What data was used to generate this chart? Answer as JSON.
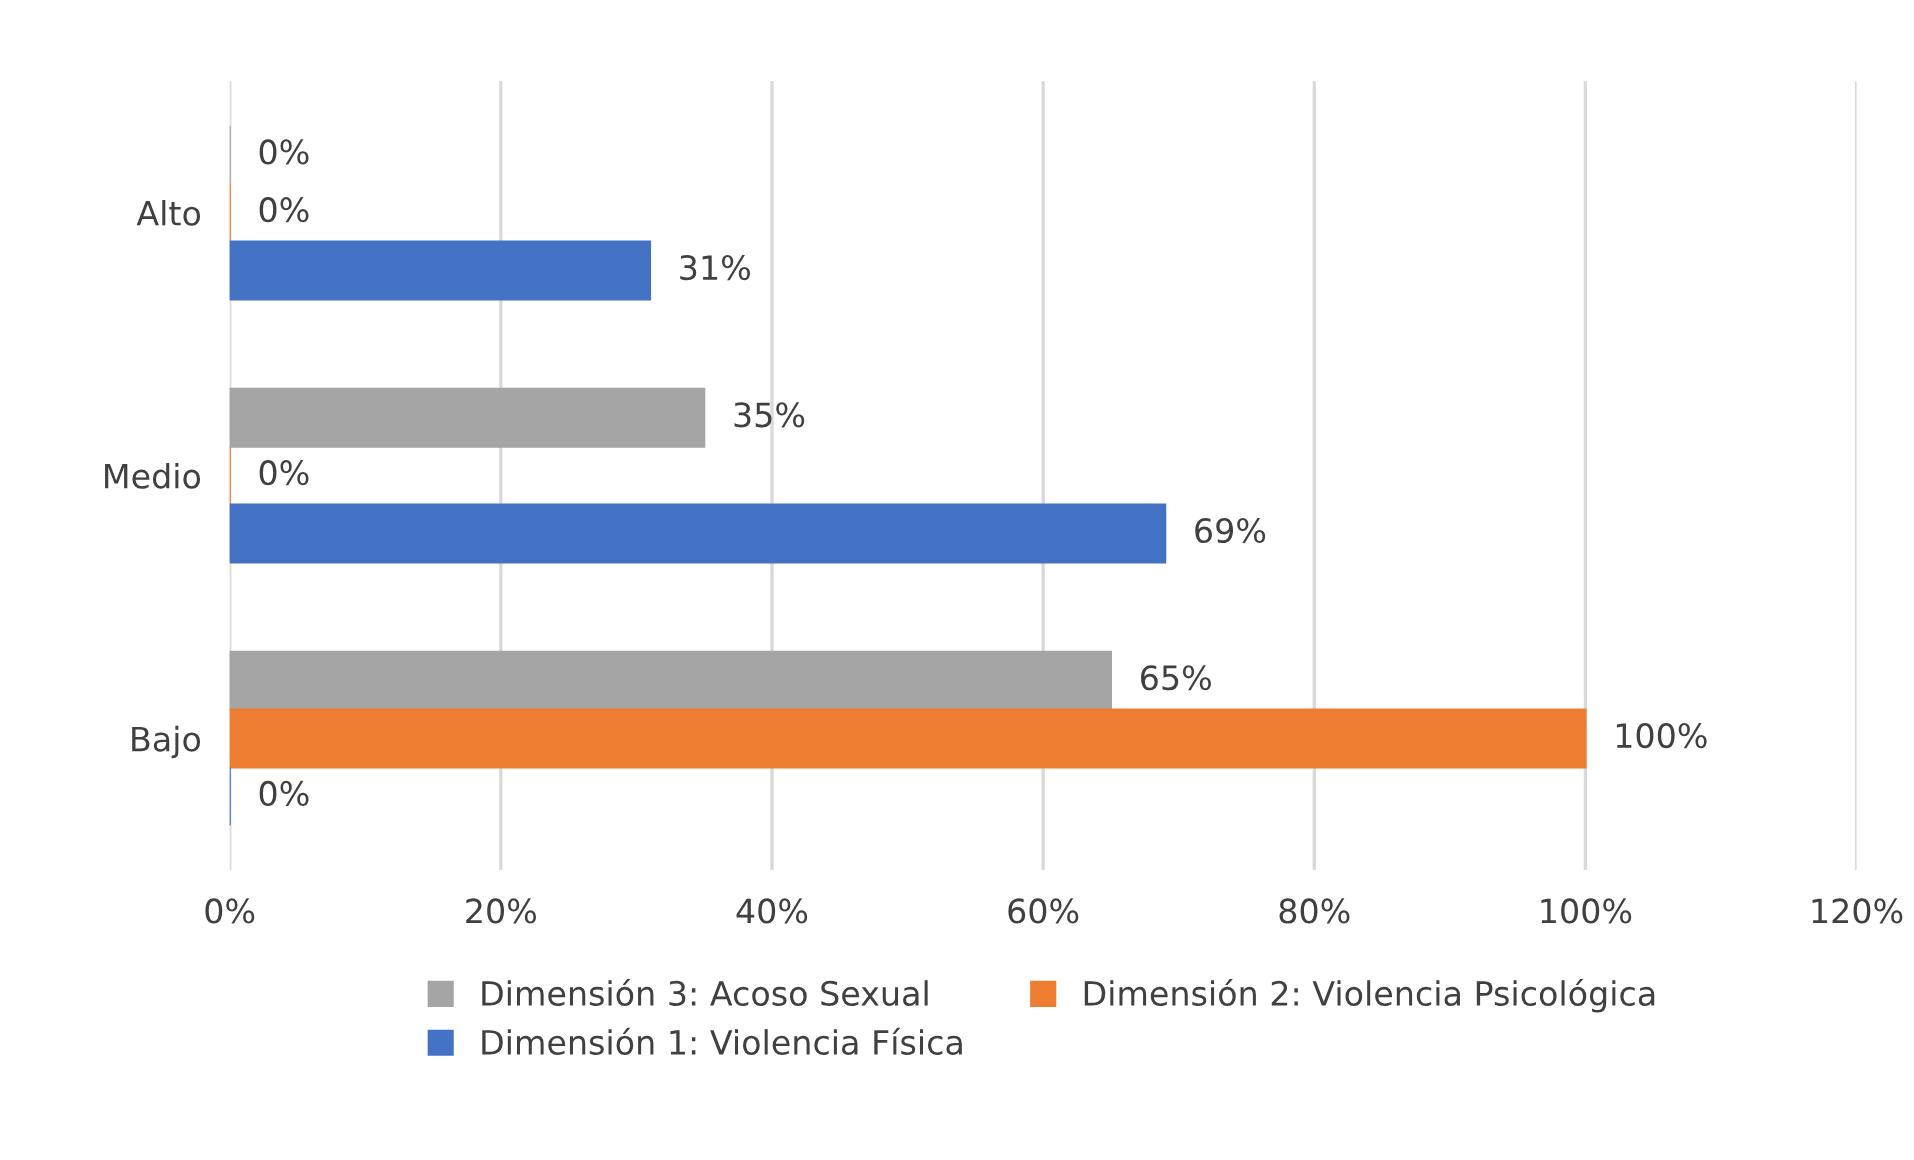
{
  "chart_data": {
    "type": "bar",
    "orientation": "horizontal",
    "categories": [
      "Alto",
      "Medio",
      "Bajo"
    ],
    "series": [
      {
        "name": "Dimensión 3: Acoso Sexual",
        "color": "#a5a5a5",
        "values": [
          0,
          35,
          65
        ],
        "value_labels": [
          "0%",
          "35%",
          "65%"
        ]
      },
      {
        "name": "Dimensión 2: Violencia Psicológica",
        "color": "#ed7d31",
        "values": [
          0,
          0,
          100
        ],
        "value_labels": [
          "0%",
          "0%",
          "100%"
        ]
      },
      {
        "name": "Dimensión 1: Violencia Física",
        "color": "#4472c4",
        "values": [
          31,
          69,
          0
        ],
        "value_labels": [
          "31%",
          "69%",
          "0%"
        ]
      }
    ],
    "xlim": [
      0,
      120
    ],
    "xticks": [
      {
        "value": 0,
        "label": "0%"
      },
      {
        "value": 20,
        "label": "20%"
      },
      {
        "value": 40,
        "label": "40%"
      },
      {
        "value": 60,
        "label": "60%"
      },
      {
        "value": 80,
        "label": "80%"
      },
      {
        "value": 100,
        "label": "100%"
      },
      {
        "value": 120,
        "label": "120%"
      }
    ],
    "grid": "x",
    "legend": "bottom"
  }
}
